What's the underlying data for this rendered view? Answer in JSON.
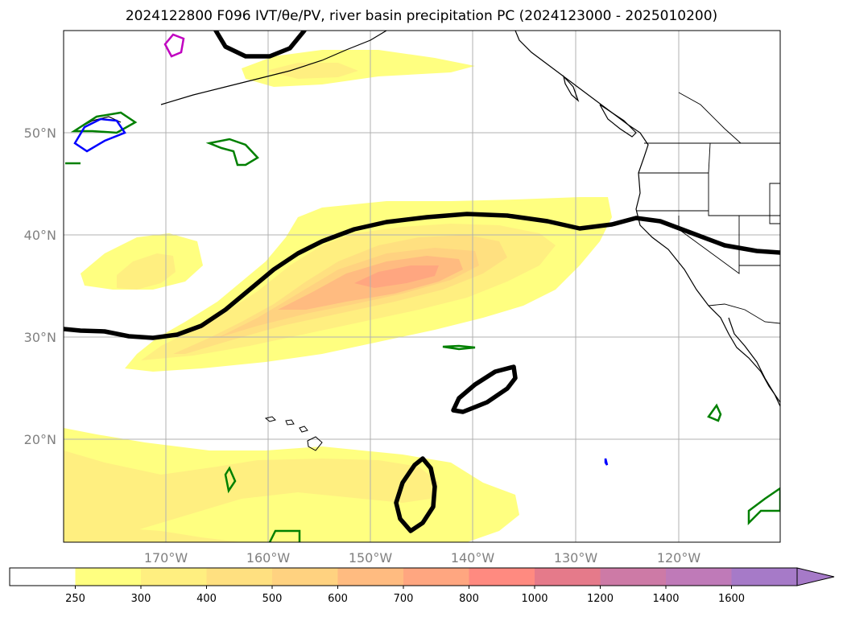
{
  "title": "2024122800 F096 IVT/θe/PV, river basin precipitation PC (2024123000 - 2025010200)",
  "map": {
    "lat_labels": [
      "50°N",
      "40°N",
      "30°N",
      "20°N"
    ],
    "lon_labels": [
      "170°W",
      "160°W",
      "150°W",
      "140°W",
      "130°W",
      "120°W"
    ]
  },
  "colorbar": {
    "ticks": [
      "250",
      "300",
      "400",
      "500",
      "600",
      "700",
      "800",
      "1000",
      "1200",
      "1400",
      "1600"
    ],
    "colors": [
      "#ffffff",
      "#ffff80",
      "#ffef80",
      "#ffe080",
      "#ffd280",
      "#ffbb80",
      "#ffa680",
      "#ff8a80",
      "#e57a8a",
      "#cd7aa6",
      "#bf7ab8",
      "#a67ac8"
    ],
    "extend": "max"
  }
}
